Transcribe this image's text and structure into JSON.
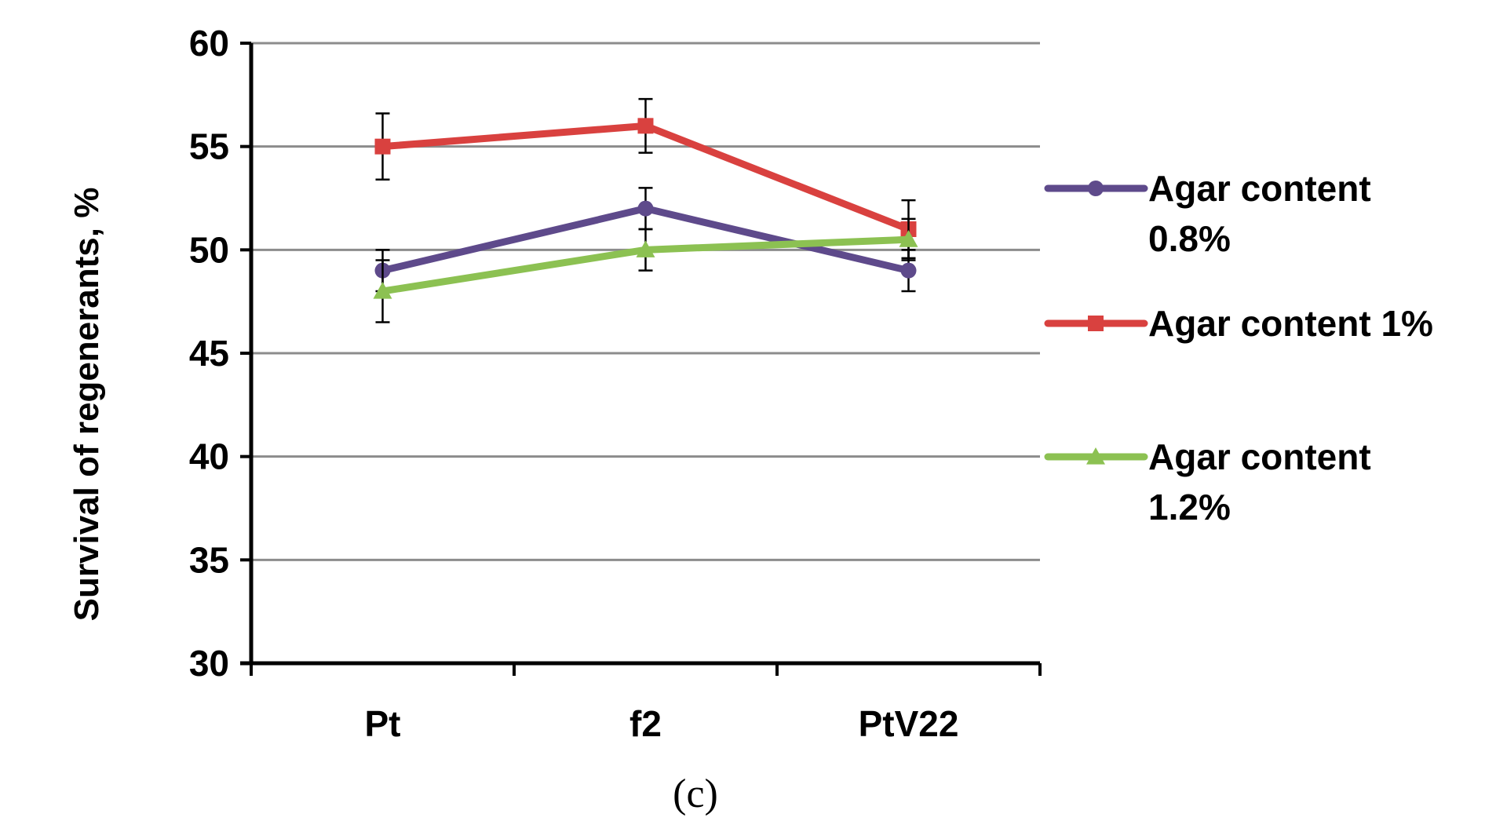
{
  "chart_data": {
    "type": "line",
    "title": "",
    "xlabel": "",
    "ylabel": "Survival of regenerants, %",
    "caption": "(c)",
    "categories": [
      "Pt",
      "f2",
      "PtV22"
    ],
    "ylim": [
      30,
      60
    ],
    "yticks": [
      30,
      35,
      40,
      45,
      50,
      55,
      60
    ],
    "grid": "horizontal",
    "legend_position": "right",
    "series": [
      {
        "name": "Agar content 0.8%",
        "legend_lines": [
          "Agar content",
          "0.8%"
        ],
        "color": "#5e4a8b",
        "marker": "circle",
        "values": [
          49,
          52,
          49
        ],
        "errors": [
          1.0,
          1.0,
          1.0
        ]
      },
      {
        "name": "Agar content 1%",
        "legend_lines": [
          "Agar content 1%"
        ],
        "color": "#d9413f",
        "marker": "square",
        "values": [
          55,
          56,
          51
        ],
        "errors": [
          1.6,
          1.3,
          1.4
        ]
      },
      {
        "name": "Agar content 1.2%",
        "legend_lines": [
          "Agar content",
          "1.2%"
        ],
        "color": "#8cc152",
        "marker": "triangle",
        "values": [
          48,
          50,
          50.5
        ],
        "errors": [
          1.5,
          1.0,
          1.0
        ]
      }
    ]
  }
}
